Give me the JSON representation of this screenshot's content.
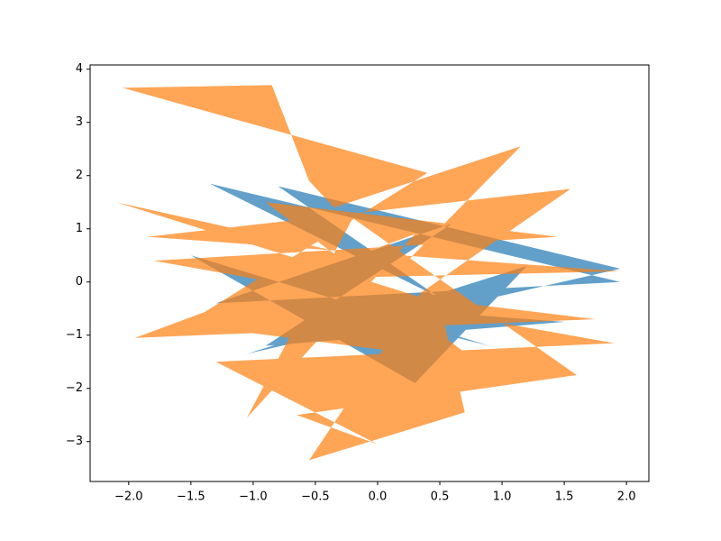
{
  "chart_data": {
    "type": "fill",
    "alpha": 0.7,
    "xlim": [
      -2.31,
      2.18
    ],
    "ylim": [
      -3.75,
      4.08
    ],
    "xticks": [
      {
        "value": -2,
        "label": "−2.0"
      },
      {
        "value": -1.5,
        "label": "−1.5"
      },
      {
        "value": -1,
        "label": "−1.0"
      },
      {
        "value": -0.5,
        "label": "−0.5"
      },
      {
        "value": 0,
        "label": "0.0"
      },
      0.5,
      {
        "value": 1,
        "label": "1.0"
      },
      1.5,
      {
        "value": 2,
        "label": "2.0"
      }
    ],
    "yticks": [
      {
        "value": -3,
        "label": "−3"
      },
      {
        "value": -2,
        "label": "−2"
      },
      {
        "value": -1,
        "label": "−1"
      },
      0,
      1,
      2,
      3,
      4
    ],
    "series": [
      {
        "color": "#1f77b4",
        "x": [
          -1.35,
          0.5,
          -0.8,
          1.95,
          -1.05,
          1.2,
          0.3,
          -1.5,
          0.9,
          -0.5,
          1.5,
          -0.9,
          0.6,
          -1.3,
          1.95
        ],
        "y": [
          1.85,
          -0.3,
          1.8,
          0.25,
          -1.35,
          0.3,
          -1.9,
          0.5,
          -1.2,
          -0.4,
          -0.75,
          -1.2,
          1.1,
          -0.4,
          0.0
        ]
      },
      {
        "color": "#ff7f0e",
        "x": [
          -0.85,
          -0.55,
          -0.35,
          1.15,
          0.2,
          -2.1,
          0.5,
          0.7,
          -0.55,
          0.35,
          1.55,
          -1.85,
          1.95,
          -0.9,
          1.75,
          -1.95,
          0.3,
          -1.05,
          -0.2,
          1.6,
          -0.65,
          0.0,
          -1.3,
          1.9,
          -1.8,
          1.45,
          -0.9,
          0.8,
          -1.55,
          0.4,
          -2.05
        ],
        "y": [
          3.7,
          1.9,
          1.4,
          2.55,
          0.3,
          1.5,
          -0.4,
          -2.45,
          -3.35,
          -0.2,
          1.75,
          0.85,
          0.2,
          0.05,
          -0.7,
          -1.05,
          0.9,
          -2.55,
          1.2,
          -1.75,
          -2.5,
          -3.05,
          -1.5,
          -1.15,
          0.4,
          0.85,
          1.5,
          -1.5,
          -0.8,
          2.05,
          3.65
        ]
      }
    ]
  }
}
